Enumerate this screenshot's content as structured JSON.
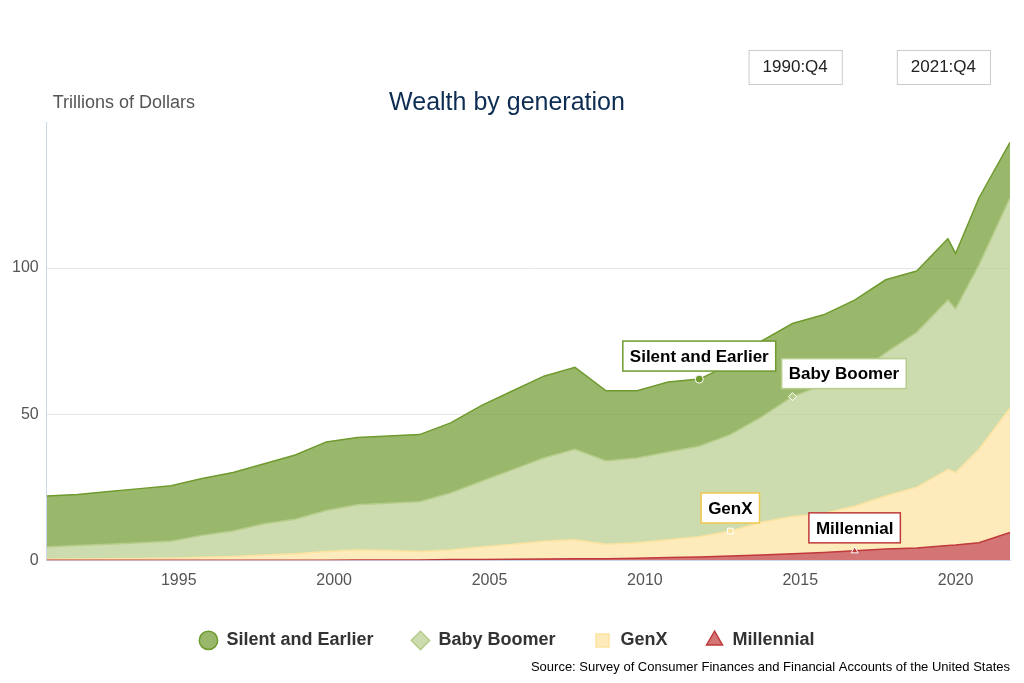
{
  "chart_data": {
    "type": "area",
    "stacked": true,
    "title": "Wealth by generation",
    "ylabel": "Trillions of Dollars",
    "range_labels": [
      "1990:Q4",
      "2021:Q4"
    ],
    "source": "Source: Survey of Consumer Finances and Financial Accounts of the United States",
    "x": [
      1990.75,
      1991.75,
      1992.75,
      1993.75,
      1994.75,
      1995.75,
      1996.75,
      1997.75,
      1998.75,
      1999.75,
      2000.75,
      2001.75,
      2002.75,
      2003.75,
      2004.75,
      2005.75,
      2006.75,
      2007.75,
      2008.75,
      2009.75,
      2010.75,
      2011.75,
      2012.75,
      2013.75,
      2014.75,
      2015.75,
      2016.75,
      2017.75,
      2018.75,
      2019.75,
      2020,
      2020.75,
      2021.75
    ],
    "series": [
      {
        "name": "Millennial",
        "color": "#c0393b",
        "marker": "triangle",
        "values": [
          0,
          0,
          0,
          0,
          0,
          0,
          0,
          0,
          0,
          0,
          0.1,
          0.1,
          0.1,
          0.2,
          0.2,
          0.3,
          0.4,
          0.5,
          0.5,
          0.7,
          0.9,
          1.1,
          1.4,
          1.8,
          2.2,
          2.6,
          3.2,
          3.8,
          4.2,
          5,
          5.2,
          6,
          9.5
        ]
      },
      {
        "name": "GenX",
        "color": "#fce3a0",
        "marker": "square",
        "values": [
          0.3,
          0.4,
          0.5,
          0.6,
          0.7,
          1,
          1.3,
          1.8,
          2.2,
          3,
          3.4,
          3.2,
          2.9,
          3.3,
          4.3,
          5.2,
          6.1,
          6.5,
          5,
          5.3,
          6.1,
          6.9,
          8.6,
          11.2,
          12.8,
          13.4,
          15.3,
          18.2,
          20.8,
          26,
          24.8,
          32,
          42.5
        ]
      },
      {
        "name": "Baby Boomer",
        "color": "#b7cd8c",
        "marker": "diamond",
        "values": [
          4.2,
          4.6,
          5,
          5.4,
          5.8,
          7.5,
          8.7,
          10.7,
          11.8,
          14,
          15.5,
          16.2,
          17,
          19.5,
          22.5,
          25.5,
          28.5,
          31,
          28.5,
          29,
          30,
          31,
          33,
          36,
          41,
          44,
          44.5,
          49,
          53,
          58,
          56,
          63,
          72
        ]
      },
      {
        "name": "Silent and Earlier",
        "color": "#6f9a2e",
        "marker": "circle",
        "values": [
          17.5,
          17.5,
          18,
          18.5,
          19,
          19.5,
          20,
          20.5,
          22,
          23.5,
          23,
          23,
          23,
          24,
          26,
          27,
          28,
          28,
          24,
          23,
          24,
          23,
          24,
          26,
          25,
          24,
          26,
          25,
          21,
          21,
          19,
          23,
          19
        ]
      }
    ],
    "annotations": [
      {
        "text": "Silent and Earlier",
        "x": 2011.75
      },
      {
        "text": "Baby Boomer",
        "x": 2014.75
      },
      {
        "text": "GenX",
        "x": 2012.75
      },
      {
        "text": "Millennial",
        "x": 2016.75
      }
    ],
    "xlim": [
      1990.75,
      2021.75
    ],
    "xticks": [
      1995,
      2000,
      2005,
      2010,
      2015,
      2020
    ],
    "ylim": [
      0,
      150
    ],
    "yticks": [
      0,
      50,
      100
    ],
    "grid": "y",
    "legend": "bottom"
  }
}
